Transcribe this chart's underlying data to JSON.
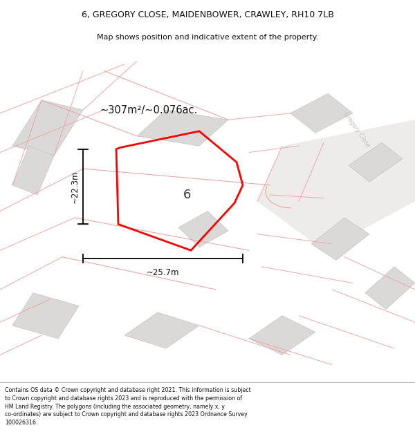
{
  "title_line1": "6, GREGORY CLOSE, MAIDENBOWER, CRAWLEY, RH10 7LB",
  "title_line2": "Map shows position and indicative extent of the property.",
  "area_label": "~307m²/~0.076ac.",
  "property_number": "6",
  "dim_width": "~25.7m",
  "dim_height": "~22.3m",
  "footer_text": "Contains OS data © Crown copyright and database right 2021. This information is subject\nto Crown copyright and database rights 2023 and is reproduced with the permission of\nHM Land Registry. The polygons (including the associated geometry, namely x, y\nco-ordinates) are subject to Crown copyright and database rights 2023 Ordnance Survey\n100026316.",
  "map_bg": "#f7f4f4",
  "building_color": "#dbd8d8",
  "building_edge": "#c5c2c2",
  "boundary_color": "#e8a8a8",
  "highlight_color": "#ff0000",
  "road_stripe_color": "#f0ecec",
  "road_text_color": "#c0bcbc",
  "white_bg": "#ffffff"
}
